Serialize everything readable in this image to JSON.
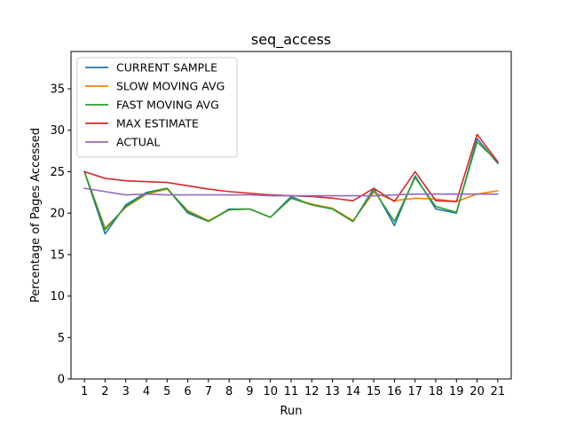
{
  "chart_data": {
    "type": "line",
    "title": "seq_access",
    "xlabel": "Run",
    "ylabel": "Percentage of Pages Accessed",
    "x": [
      1,
      2,
      3,
      4,
      5,
      6,
      7,
      8,
      9,
      10,
      11,
      12,
      13,
      14,
      15,
      16,
      17,
      18,
      19,
      20,
      21
    ],
    "xticks": [
      "1",
      "2",
      "3",
      "4",
      "5",
      "6",
      "7",
      "8",
      "9",
      "10",
      "11",
      "12",
      "13",
      "14",
      "15",
      "16",
      "17",
      "18",
      "19",
      "20",
      "21"
    ],
    "xlim": [
      0.35,
      21.65
    ],
    "ylim": [
      0,
      39.5
    ],
    "yticks": [
      0,
      5,
      10,
      15,
      20,
      25,
      30,
      35
    ],
    "grid": false,
    "legend_position": "top-left",
    "series": [
      {
        "name": "CURRENT SAMPLE",
        "color": "#1f77b4",
        "values": [
          25.0,
          17.5,
          21.0,
          22.5,
          23.0,
          20.0,
          19.0,
          20.5,
          20.5,
          19.5,
          22.0,
          21.0,
          20.5,
          19.0,
          23.0,
          18.5,
          24.5,
          20.5,
          20.0,
          29.0,
          26.0
        ]
      },
      {
        "name": "SLOW MOVING AVG",
        "color": "#ff7f0e",
        "values": [
          25.0,
          18.2,
          20.7,
          22.3,
          22.9,
          20.3,
          19.1,
          20.4,
          20.5,
          19.5,
          21.8,
          21.1,
          20.6,
          19.1,
          22.5,
          21.5,
          21.8,
          21.7,
          21.4,
          22.3,
          22.7
        ]
      },
      {
        "name": "FAST MOVING AVG",
        "color": "#2ca02c",
        "values": [
          25.0,
          18.0,
          20.8,
          22.4,
          23.0,
          20.2,
          19.0,
          20.4,
          20.5,
          19.5,
          21.8,
          21.0,
          20.5,
          19.0,
          22.8,
          19.0,
          24.3,
          20.8,
          20.1,
          28.6,
          26.2
        ]
      },
      {
        "name": "MAX ESTIMATE",
        "color": "#d62728",
        "values": [
          25.0,
          24.2,
          23.9,
          23.8,
          23.7,
          23.3,
          22.9,
          22.6,
          22.4,
          22.2,
          22.1,
          22.0,
          21.8,
          21.5,
          23.0,
          21.4,
          25.0,
          21.5,
          21.4,
          29.5,
          26.2
        ]
      },
      {
        "name": "ACTUAL",
        "color": "#9467bd",
        "values": [
          23.0,
          22.6,
          22.2,
          22.3,
          22.2,
          22.2,
          22.2,
          22.2,
          22.2,
          22.1,
          22.1,
          22.1,
          22.1,
          22.1,
          22.1,
          22.2,
          22.3,
          22.3,
          22.3,
          22.3,
          22.3
        ]
      }
    ]
  }
}
